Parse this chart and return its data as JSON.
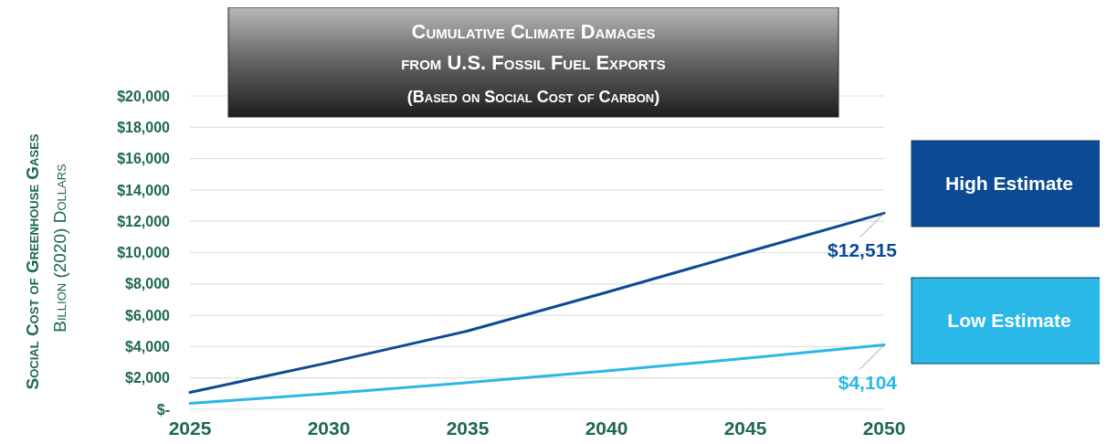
{
  "chart_data": {
    "type": "line",
    "title": "Cumulative Climate Damages from U.S. Fossil Fuel Exports",
    "subtitle": "(Based on Social Cost of Carbon)",
    "ylabel": "Social Cost of Greenhouse Gases\nBillion (2020) Dollars",
    "x": [
      2025,
      2030,
      2035,
      2040,
      2045,
      2050
    ],
    "series": [
      {
        "name": "High Estimate",
        "color": "#0d4a94",
        "values": [
          1080,
          2980,
          5000,
          7460,
          10000,
          12515
        ]
      },
      {
        "name": "Low Estimate",
        "color": "#29b8e8",
        "values": [
          380,
          1000,
          1700,
          2450,
          3250,
          4104
        ]
      }
    ],
    "xlim": [
      2025,
      2050
    ],
    "xticks": [
      2025,
      2030,
      2035,
      2040,
      2045,
      2050
    ],
    "ylim": [
      0,
      20000
    ],
    "yticks": [
      {
        "value": 0,
        "label": "$-"
      },
      {
        "value": 2000,
        "label": "$2,000"
      },
      {
        "value": 4000,
        "label": "$4,000"
      },
      {
        "value": 6000,
        "label": "$6,000"
      },
      {
        "value": 8000,
        "label": "$8,000"
      },
      {
        "value": 10000,
        "label": "$10,000"
      },
      {
        "value": 12000,
        "label": "$12,000"
      },
      {
        "value": 14000,
        "label": "$14,000"
      },
      {
        "value": 16000,
        "label": "$16,000"
      },
      {
        "value": 18000,
        "label": "$18,000"
      },
      {
        "value": 20000,
        "label": "$20,000"
      }
    ],
    "grid": "y",
    "legend": "right",
    "marker": "none",
    "line_style": "solid",
    "annotations": [
      {
        "text": "$12,515",
        "x": 2050,
        "y": 12515
      },
      {
        "text": "$4,104",
        "x": 2050,
        "y": 4104
      }
    ]
  }
}
